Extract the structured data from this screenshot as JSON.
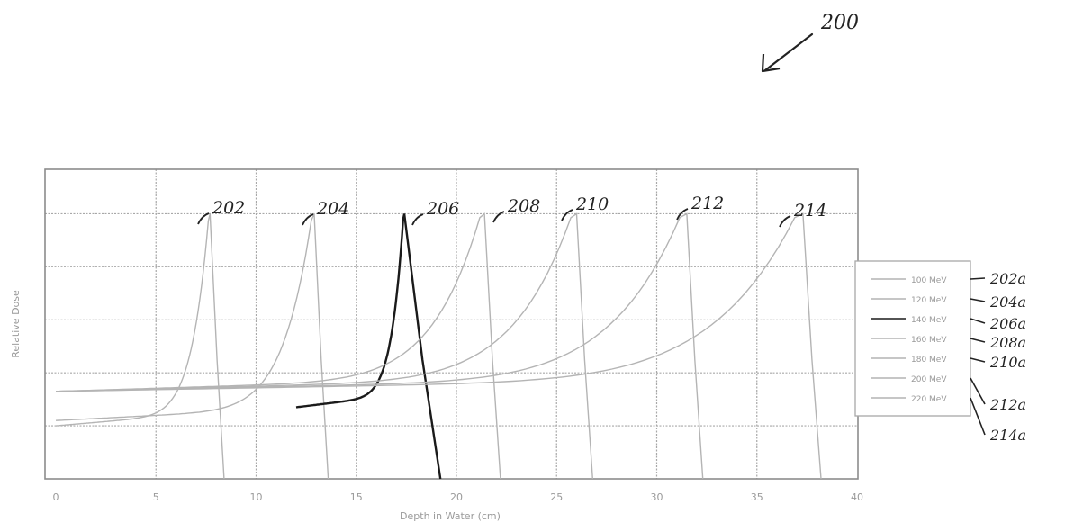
{
  "figure_ref": "200",
  "colors": {
    "frame": "#8c8c8c",
    "grid": "#a8a8a8",
    "line": "#b4b4b4",
    "highlight": "#1a1a1a",
    "ink": "#222222"
  },
  "chart_data": {
    "type": "line",
    "title": "",
    "xlabel": "Depth in Water (cm)",
    "ylabel": "Relative Dose",
    "xlim": [
      0,
      40
    ],
    "ylim": [
      0,
      1.1
    ],
    "x_ticks": [
      "0",
      "5",
      "10",
      "15",
      "20",
      "25",
      "30",
      "35",
      "40"
    ],
    "y_ticks": [
      "",
      "",
      "",
      "",
      "",
      ""
    ],
    "grid": true,
    "legend_position": "right",
    "highlight_series": 2,
    "series": [
      {
        "name": "100 MeV",
        "callout": "202",
        "legend_callout": "202a",
        "range": 7.7,
        "tail": 8.4,
        "peak": 1.0,
        "entrance": 0.2
      },
      {
        "name": "120 MeV",
        "callout": "204",
        "legend_callout": "204a",
        "range": 12.9,
        "tail": 13.6,
        "peak": 1.0,
        "entrance": 0.22
      },
      {
        "name": "140 MeV",
        "callout": "206",
        "legend_callout": "206a",
        "range": 17.4,
        "tail": 19.2,
        "peak": 1.0,
        "entrance": 0.27
      },
      {
        "name": "160 MeV",
        "callout": "208",
        "legend_callout": "208a",
        "range": 21.4,
        "tail": 22.2,
        "peak": 1.0,
        "entrance": 0.33
      },
      {
        "name": "180 MeV",
        "callout": "210",
        "legend_callout": "210a",
        "range": 26.0,
        "tail": 26.8,
        "peak": 1.0,
        "entrance": 0.33
      },
      {
        "name": "200 MeV",
        "callout": "212",
        "legend_callout": "212a",
        "range": 31.5,
        "tail": 32.3,
        "peak": 1.0,
        "entrance": 0.33
      },
      {
        "name": "220 MeV",
        "callout": "214",
        "legend_callout": "214a",
        "range": 37.3,
        "tail": 38.2,
        "peak": 1.0,
        "entrance": 0.33
      }
    ]
  }
}
